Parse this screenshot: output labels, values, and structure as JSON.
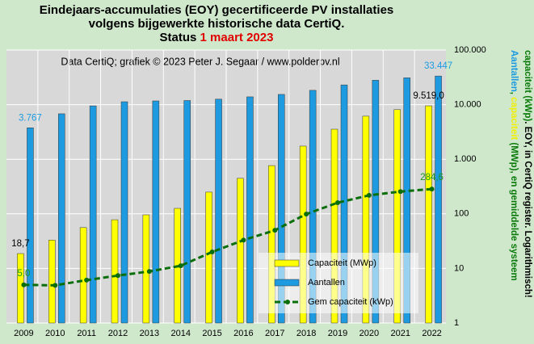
{
  "chart_data": {
    "type": "bar",
    "title": [
      "Eindejaars-accumulaties (EOY) gecertificeerde PV installaties",
      "volgens bijgewerkte historische data CertiQ.",
      "Status"
    ],
    "title_date": "1 maart 2023",
    "title_date_color": "#e00000",
    "subtitle": "Data CertiQ; grafiek © 2023 Peter J. Segaar / www.polderpv.nl",
    "y_label": [
      [
        {
          "text": "Aantallen",
          "color": "#1e9be0"
        },
        {
          "text": ",",
          "color": "#0a7a0a"
        },
        {
          "text": " capaciteit",
          "color": "#f0f000"
        },
        {
          "text": " (MWp), en gemiddelde systeem",
          "color": "#0a7a0a"
        }
      ],
      [
        {
          "text": "capaciteit (kWp)",
          "color": "#0a7a0a"
        },
        {
          "text": ". EOY, in CertiQ register. Logarithmisch!",
          "color": "#000000"
        }
      ]
    ],
    "categories": [
      "2009",
      "2010",
      "2011",
      "2012",
      "2013",
      "2014",
      "2015",
      "2016",
      "2017",
      "2018",
      "2019",
      "2020",
      "2021",
      "2022"
    ],
    "series": [
      {
        "name": "Capaciteit (MWp)",
        "color": "#ffff00",
        "kind": "bar",
        "values": [
          18.7,
          33,
          56,
          78,
          96,
          126,
          250,
          447,
          765,
          1740,
          3550,
          6150,
          8100,
          9519.0
        ],
        "value_labels": [
          "18,7",
          null,
          null,
          null,
          null,
          null,
          null,
          null,
          null,
          null,
          null,
          null,
          null,
          "9.519,0"
        ],
        "label_color": "#000000"
      },
      {
        "name": "Aantallen",
        "color": "#1e9be0",
        "kind": "bar",
        "values": [
          3767,
          6800,
          9500,
          11300,
          11700,
          11900,
          12600,
          13900,
          15400,
          18300,
          23000,
          28000,
          31000,
          33447
        ],
        "value_labels": [
          "3.767",
          null,
          null,
          null,
          null,
          null,
          null,
          null,
          null,
          null,
          null,
          null,
          null,
          "33.447"
        ],
        "label_color": "#1e9be0"
      },
      {
        "name": "Gem capaciteit (kWp)",
        "color": "#0a6e0a",
        "kind": "line",
        "values": [
          5.0,
          4.9,
          6.1,
          7.4,
          8.8,
          11.2,
          20,
          33,
          50,
          99,
          160,
          218,
          256,
          284.6
        ],
        "value_labels": [
          "5,0",
          null,
          null,
          null,
          null,
          null,
          null,
          null,
          null,
          null,
          null,
          null,
          null,
          "284,6"
        ],
        "label_color": "#1a9a1a"
      }
    ],
    "log_scale": true,
    "ylim": [
      1,
      100000
    ],
    "yticks": [
      1,
      10,
      100,
      {
        "value": 1000,
        "label": "1.000"
      },
      {
        "value": 10000,
        "label": "10.000"
      },
      {
        "value": 100000,
        "label": "100.000"
      }
    ],
    "grid": true
  }
}
